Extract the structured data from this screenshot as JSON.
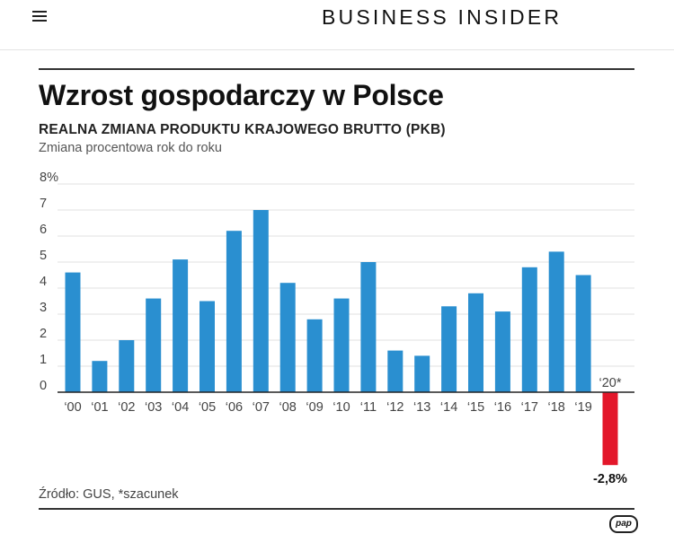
{
  "header": {
    "menu_icon": "hamburger-menu-icon",
    "brand": "BUSINESS INSIDER"
  },
  "figure": {
    "title": "Wzrost gospodarczy w Polsce",
    "subtitle": "REALNA ZMIANA PRODUKTU KRAJOWEGO BRUTTO (PKB)",
    "units": "Zmiana procentowa rok do roku",
    "source": "Źródło: GUS, *szacunek",
    "logo_text": "pap"
  },
  "chart_data": {
    "type": "bar",
    "title": "Wzrost gospodarczy w Polsce",
    "subtitle": "REALNA ZMIANA PRODUKTU KRAJOWEGO BRUTTO (PKB)",
    "ylabel": "Zmiana procentowa rok do roku",
    "xlabel": "",
    "ylim": [
      -2.8,
      8
    ],
    "yticks": [
      0,
      1,
      2,
      3,
      4,
      5,
      6,
      7,
      8
    ],
    "ytick_labels": [
      "0",
      "1",
      "2",
      "3",
      "4",
      "5",
      "6",
      "7",
      "8%"
    ],
    "grid": true,
    "categories": [
      "‘00",
      "‘01",
      "‘02",
      "‘03",
      "‘04",
      "‘05",
      "‘06",
      "‘07",
      "‘08",
      "‘09",
      "‘10",
      "‘11",
      "‘12",
      "‘13",
      "‘14",
      "‘15",
      "‘16",
      "‘17",
      "‘18",
      "‘19",
      "‘20*"
    ],
    "values": [
      4.6,
      1.2,
      2.0,
      3.6,
      5.1,
      3.5,
      6.2,
      7.0,
      4.2,
      2.8,
      3.6,
      5.0,
      1.6,
      1.4,
      3.3,
      3.8,
      3.1,
      4.8,
      5.4,
      4.5,
      -2.8
    ],
    "data_labels": [
      {
        "category": "‘20*",
        "text": "-2,8%"
      }
    ],
    "colors": {
      "positive": "#2a8fd0",
      "negative": "#e3172a",
      "grid": "#e2e2e2",
      "axis": "#222222"
    }
  }
}
